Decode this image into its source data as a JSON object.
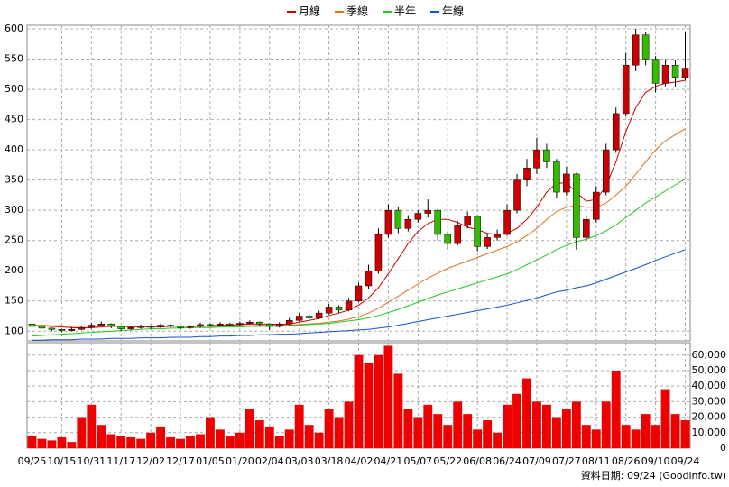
{
  "chart_data": [
    {
      "type": "candlestick",
      "categories": [
        "09/25",
        null,
        null,
        "10/15",
        null,
        null,
        "10/31",
        null,
        null,
        "11/17",
        null,
        null,
        "12/02",
        null,
        null,
        "12/17",
        null,
        null,
        "01/05",
        null,
        null,
        "01/20",
        null,
        null,
        "02/04",
        null,
        null,
        "03/03",
        null,
        null,
        "03/18",
        null,
        null,
        "04/02",
        null,
        null,
        "04/21",
        null,
        null,
        "05/07",
        null,
        null,
        "05/22",
        null,
        null,
        "06/08",
        null,
        null,
        "06/24",
        null,
        null,
        "07/09",
        null,
        null,
        "07/27",
        null,
        null,
        "08/11",
        null,
        null,
        "08/26",
        null,
        null,
        "09/10",
        null,
        null,
        "09/24"
      ],
      "open": [
        112,
        108,
        105,
        103,
        101,
        103,
        106,
        110,
        112,
        108,
        104,
        106,
        108,
        107,
        110,
        109,
        106,
        108,
        111,
        110,
        112,
        111,
        113,
        115,
        112,
        108,
        112,
        118,
        125,
        122,
        130,
        140,
        135,
        150,
        175,
        200,
        260,
        300,
        270,
        285,
        295,
        300,
        260,
        245,
        275,
        290,
        240,
        255,
        260,
        300,
        350,
        370,
        400,
        380,
        330,
        360,
        255,
        285,
        330,
        400,
        460,
        540,
        590,
        550,
        510,
        540,
        520
      ],
      "high": [
        114,
        110,
        106,
        104,
        106,
        108,
        114,
        116,
        113,
        109,
        109,
        111,
        110,
        113,
        112,
        110,
        110,
        114,
        113,
        115,
        114,
        116,
        118,
        116,
        113,
        115,
        122,
        130,
        128,
        134,
        145,
        143,
        155,
        180,
        210,
        270,
        310,
        305,
        292,
        300,
        318,
        302,
        265,
        282,
        298,
        292,
        262,
        268,
        310,
        360,
        385,
        420,
        410,
        385,
        372,
        362,
        292,
        340,
        410,
        470,
        560,
        600,
        595,
        555,
        550,
        548,
        595
      ],
      "low": [
        104,
        102,
        100,
        98,
        100,
        102,
        104,
        108,
        105,
        101,
        102,
        104,
        104,
        105,
        106,
        103,
        104,
        106,
        107,
        108,
        108,
        109,
        111,
        108,
        102,
        106,
        110,
        116,
        118,
        120,
        128,
        130,
        133,
        148,
        170,
        195,
        255,
        262,
        265,
        280,
        288,
        250,
        235,
        242,
        270,
        232,
        236,
        250,
        258,
        295,
        340,
        360,
        370,
        320,
        325,
        235,
        250,
        280,
        325,
        395,
        455,
        530,
        540,
        495,
        505,
        505,
        515
      ],
      "close": [
        108,
        105,
        103,
        101,
        103,
        106,
        110,
        112,
        108,
        104,
        106,
        108,
        107,
        110,
        109,
        106,
        108,
        111,
        110,
        112,
        111,
        113,
        115,
        112,
        108,
        112,
        118,
        125,
        122,
        130,
        140,
        135,
        150,
        175,
        200,
        260,
        300,
        270,
        285,
        295,
        300,
        260,
        245,
        275,
        290,
        240,
        255,
        260,
        300,
        350,
        370,
        400,
        380,
        330,
        360,
        255,
        285,
        330,
        400,
        460,
        540,
        590,
        550,
        510,
        540,
        520,
        535
      ],
      "up_color": "#cc0000",
      "down_color": "#33bb00",
      "series": [
        {
          "name": "月線",
          "color": "#cc0000",
          "values": [
            110,
            109,
            108,
            107,
            106,
            105,
            106,
            107,
            108,
            108,
            107,
            107,
            107,
            107,
            108,
            108,
            108,
            108,
            109,
            110,
            110,
            111,
            112,
            112,
            112,
            111,
            112,
            115,
            118,
            121,
            126,
            130,
            135,
            143,
            155,
            172,
            195,
            220,
            245,
            265,
            278,
            285,
            285,
            280,
            272,
            268,
            262,
            260,
            262,
            270,
            285,
            305,
            330,
            345,
            345,
            330,
            315,
            318,
            340,
            380,
            430,
            470,
            495,
            505,
            510,
            512,
            515
          ]
        },
        {
          "name": "季線",
          "color": "#e07020",
          "values": [
            110,
            110,
            109,
            109,
            108,
            108,
            108,
            108,
            108,
            108,
            108,
            108,
            108,
            108,
            108,
            108,
            108,
            108,
            108,
            108,
            109,
            109,
            109,
            110,
            110,
            110,
            110,
            111,
            112,
            113,
            115,
            117,
            120,
            124,
            130,
            138,
            148,
            158,
            168,
            178,
            188,
            196,
            204,
            210,
            216,
            222,
            228,
            234,
            240,
            248,
            258,
            270,
            285,
            298,
            305,
            308,
            305,
            305,
            312,
            325,
            340,
            360,
            380,
            400,
            415,
            425,
            435
          ]
        },
        {
          "name": "半年",
          "color": "#22cc22",
          "values": [
            92,
            93,
            94,
            95,
            96,
            97,
            98,
            99,
            100,
            101,
            102,
            103,
            104,
            104,
            105,
            105,
            106,
            106,
            106,
            107,
            107,
            107,
            108,
            108,
            108,
            108,
            109,
            110,
            111,
            112,
            113,
            115,
            117,
            119,
            122,
            126,
            131,
            136,
            142,
            148,
            154,
            160,
            165,
            170,
            175,
            180,
            185,
            190,
            195,
            202,
            210,
            218,
            226,
            235,
            242,
            248,
            252,
            258,
            266,
            276,
            288,
            300,
            312,
            322,
            332,
            342,
            352
          ]
        },
        {
          "name": "年線",
          "color": "#1155cc",
          "values": [
            85,
            85,
            86,
            86,
            86,
            87,
            87,
            87,
            88,
            88,
            88,
            89,
            89,
            89,
            90,
            90,
            90,
            91,
            91,
            92,
            92,
            93,
            93,
            94,
            94,
            95,
            95,
            96,
            97,
            98,
            99,
            100,
            101,
            102,
            103,
            105,
            107,
            110,
            113,
            116,
            119,
            122,
            125,
            128,
            131,
            134,
            137,
            140,
            143,
            147,
            151,
            155,
            160,
            165,
            168,
            172,
            175,
            180,
            186,
            192,
            198,
            204,
            210,
            217,
            223,
            229,
            235
          ]
        }
      ],
      "ylim": [
        84,
        606
      ],
      "yticks": [
        100,
        150,
        200,
        250,
        300,
        350,
        400,
        450,
        500,
        550,
        600
      ],
      "grid": true
    },
    {
      "type": "bar",
      "values": [
        8000,
        6000,
        5000,
        7000,
        4000,
        20000,
        28000,
        15000,
        9000,
        8000,
        7000,
        6000,
        10000,
        14000,
        7000,
        6000,
        8000,
        9000,
        20000,
        12000,
        8000,
        10000,
        25000,
        18000,
        14000,
        8000,
        12000,
        28000,
        15000,
        10000,
        25000,
        20000,
        30000,
        60000,
        55000,
        60000,
        66000,
        48000,
        25000,
        20000,
        28000,
        22000,
        15000,
        30000,
        22000,
        12000,
        18000,
        10000,
        28000,
        35000,
        45000,
        30000,
        28000,
        20000,
        25000,
        30000,
        15000,
        12000,
        30000,
        50000,
        15000,
        12000,
        22000,
        15000,
        38000,
        22000,
        18000
      ],
      "color": "#ee0000",
      "ylim": [
        0,
        68000
      ],
      "yticks": [
        0,
        {
          "value": 10000,
          "label": "10,000"
        },
        {
          "value": 20000,
          "label": "20,000"
        },
        {
          "value": 30000,
          "label": "30,000"
        },
        {
          "value": 40000,
          "label": "40,000"
        },
        {
          "value": 50000,
          "label": "50,000"
        },
        {
          "value": 60000,
          "label": "60,000"
        }
      ],
      "grid": true
    }
  ],
  "footer": "資料日期: 09/24 (Goodinfo.tw)"
}
